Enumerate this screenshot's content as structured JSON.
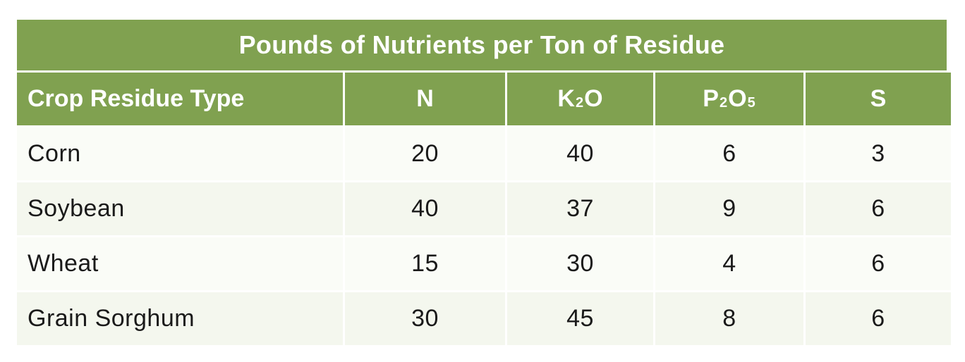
{
  "table": {
    "title": "Pounds of Nutrients per Ton of Residue",
    "header_first": "Crop Residue Type",
    "headers": [
      {
        "base": "N",
        "parts": [
          {
            "text": "N",
            "sub": false
          }
        ]
      },
      {
        "base": "K2O",
        "parts": [
          {
            "text": "K",
            "sub": false
          },
          {
            "text": "2",
            "sub": true
          },
          {
            "text": "O",
            "sub": false
          }
        ]
      },
      {
        "base": "P2O5",
        "parts": [
          {
            "text": "P",
            "sub": false
          },
          {
            "text": "2",
            "sub": true
          },
          {
            "text": "O",
            "sub": false
          },
          {
            "text": "5",
            "sub": true
          }
        ]
      },
      {
        "base": "S",
        "parts": [
          {
            "text": "S",
            "sub": false
          }
        ]
      }
    ],
    "rows": [
      {
        "crop": "Corn",
        "values": [
          "20",
          "40",
          "6",
          "3"
        ]
      },
      {
        "crop": "Soybean",
        "values": [
          "40",
          "37",
          "9",
          "6"
        ]
      },
      {
        "crop": "Wheat",
        "values": [
          "15",
          "30",
          "4",
          "6"
        ]
      },
      {
        "crop": "Grain Sorghum",
        "values": [
          "30",
          "45",
          "8",
          "6"
        ]
      }
    ]
  },
  "colors": {
    "header_bg": "#80a150",
    "row_light": "#fafcf7",
    "row_shade": "#f4f7ee"
  }
}
